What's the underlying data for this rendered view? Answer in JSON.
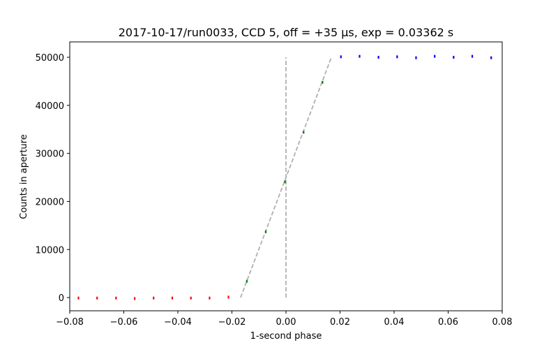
{
  "chart_data": {
    "type": "scatter",
    "title": "2017-10-17/run0033, CCD 5, off = +35 μs, exp = 0.03362 s",
    "xlabel": "1-second phase",
    "ylabel": "Counts in aperture",
    "xlim": [
      -0.08,
      0.08
    ],
    "ylim": [
      -2750,
      53200
    ],
    "xticks": [
      -0.08,
      -0.06,
      -0.04,
      -0.02,
      0.0,
      0.02,
      0.04,
      0.06,
      0.08
    ],
    "xtick_labels": [
      "−0.08",
      "−0.06",
      "−0.04",
      "−0.02",
      "0.00",
      "0.02",
      "0.04",
      "0.06",
      "0.08"
    ],
    "yticks": [
      0,
      10000,
      20000,
      30000,
      40000,
      50000
    ],
    "ytick_labels": [
      "0",
      "10000",
      "20000",
      "30000",
      "40000",
      "50000"
    ],
    "grid": false,
    "series": [
      {
        "color": "#ff0000",
        "x": [
          -0.0768,
          -0.0699,
          -0.0629,
          -0.056,
          -0.049,
          -0.0421,
          -0.0352,
          -0.0283,
          -0.0213
        ],
        "y": [
          -100,
          -100,
          -100,
          -200,
          -100,
          -100,
          -100,
          -100,
          100
        ]
      },
      {
        "color": "#008000",
        "x": [
          -0.0145,
          -0.0075,
          -0.0004,
          0.0065,
          0.0135
        ],
        "y": [
          3400,
          13700,
          24100,
          34400,
          44800
        ]
      },
      {
        "color": "#0000ff",
        "x": [
          0.0203,
          0.0272,
          0.0342,
          0.0411,
          0.0481,
          0.055,
          0.062,
          0.0689,
          0.0759
        ],
        "y": [
          50100,
          50200,
          50000,
          50100,
          49900,
          50200,
          50000,
          50200,
          49900
        ]
      }
    ],
    "lines": [
      {
        "style": "dashed",
        "color": "#b0b0b0",
        "x": [
          -0.0168,
          0.0168
        ],
        "y": [
          0,
          50000
        ]
      },
      {
        "style": "dashed",
        "color": "#b0b0b0",
        "x": [
          0.0,
          0.0
        ],
        "y": [
          0,
          50000
        ]
      }
    ]
  }
}
